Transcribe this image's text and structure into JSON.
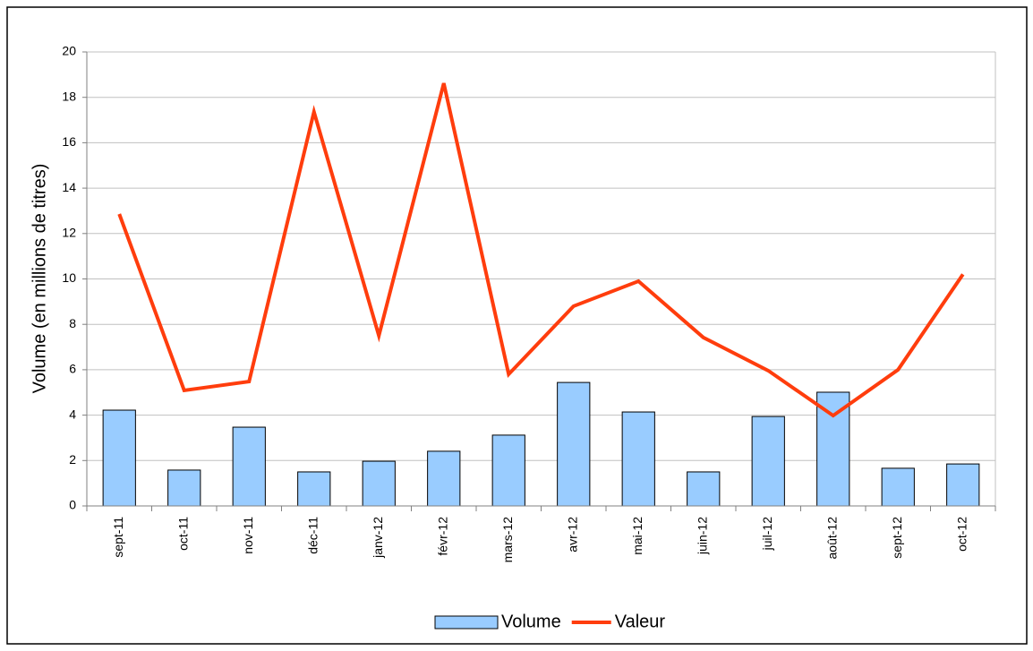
{
  "chart_data": {
    "type": "combo",
    "y_label": "Volume (en millions de titres)",
    "categories": [
      "sept-11",
      "oct-11",
      "nov-11",
      "déc-11",
      "janv-12",
      "févr-12",
      "mars-12",
      "avr-12",
      "mai-12",
      "juin-12",
      "juil-12",
      "août-12",
      "sept-12",
      "oct-12"
    ],
    "series": [
      {
        "name": "Volume",
        "type": "bar",
        "color": "#99ccff",
        "values": [
          4.22,
          1.58,
          3.47,
          1.5,
          1.97,
          2.41,
          3.12,
          5.44,
          4.14,
          1.5,
          3.94,
          5.01,
          1.66,
          1.85
        ]
      },
      {
        "name": "Valeur",
        "type": "line",
        "color": "#ff3d0d",
        "values": [
          12.86,
          5.09,
          5.48,
          17.36,
          7.5,
          18.62,
          5.8,
          8.8,
          9.9,
          7.42,
          5.96,
          3.98,
          6.0,
          10.2
        ]
      }
    ],
    "ylim": [
      0,
      20
    ],
    "yticks": [
      0,
      2,
      4,
      6,
      8,
      10,
      12,
      14,
      16,
      18,
      20
    ],
    "grid": true,
    "legend": "bottom"
  }
}
